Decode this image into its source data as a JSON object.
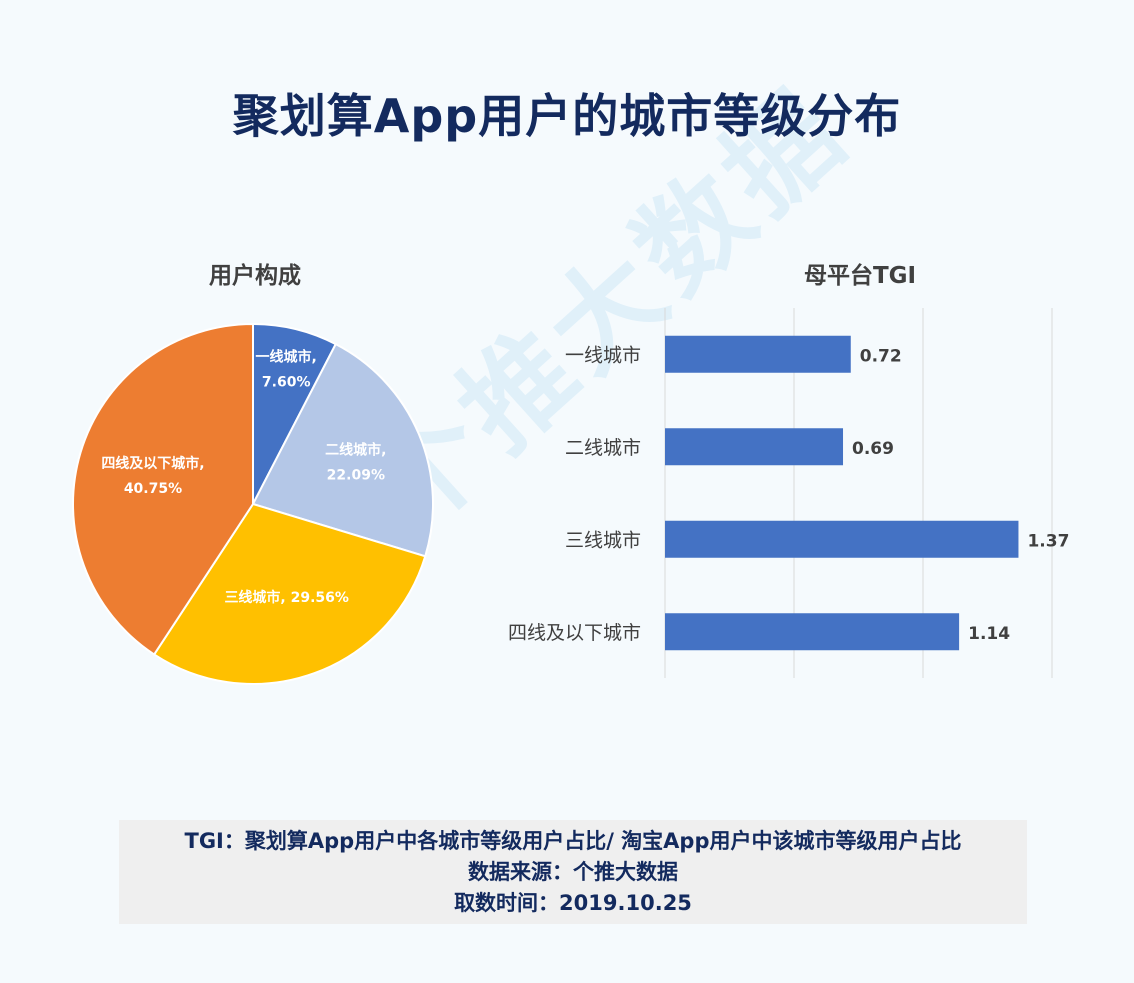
{
  "title": "聚划算App用户的城市等级分布",
  "watermark": "个推大数据",
  "colors": {
    "title": "#132a5e",
    "bar": "#4472c4",
    "grid": "#d9d9d9"
  },
  "chart_data": [
    {
      "type": "pie",
      "title": "用户构成",
      "categories": [
        "一线城市",
        "二线城市",
        "三线城市",
        "四线及以下城市"
      ],
      "values": [
        7.6,
        22.09,
        29.56,
        40.75
      ],
      "value_labels": [
        "7.60%",
        "22.09%",
        "29.56%",
        "40.75%"
      ],
      "colors": [
        "#4472c4",
        "#b4c7e7",
        "#ffc000",
        "#ed7d31"
      ]
    },
    {
      "type": "bar",
      "orientation": "horizontal",
      "title": "母平台TGI",
      "categories": [
        "一线城市",
        "二线城市",
        "三线城市",
        "四线及以下城市"
      ],
      "values": [
        0.72,
        0.69,
        1.37,
        1.14
      ],
      "value_labels": [
        "0.72",
        "0.69",
        "1.37",
        "1.14"
      ],
      "xlim": [
        0,
        1.5
      ],
      "grid": true
    }
  ],
  "footer": {
    "line1": "TGI：聚划算App用户中各城市等级用户占比/ 淘宝App用户中该城市等级用户占比",
    "line2": "数据来源：个推大数据",
    "line3": "取数时间：2019.10.25"
  }
}
